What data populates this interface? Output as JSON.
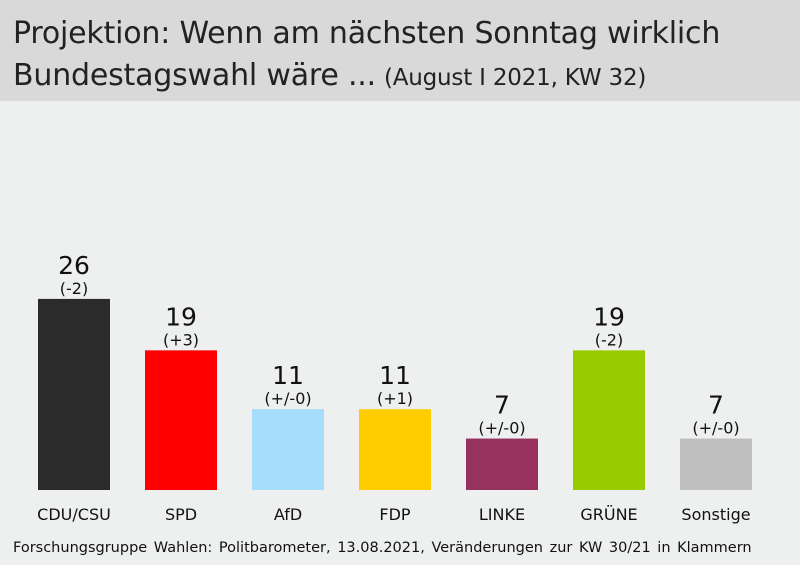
{
  "header": {
    "title_line1": "Projektion: Wenn am nächsten Sonntag wirklich",
    "title_line2": "Bundestagswahl wäre ...",
    "subtitle": "(August I 2021, KW 32)"
  },
  "chart_data": {
    "type": "bar",
    "categories": [
      "CDU/CSU",
      "SPD",
      "AfD",
      "FDP",
      "LINKE",
      "GRÜNE",
      "Sonstige"
    ],
    "values": [
      26,
      19,
      11,
      11,
      7,
      19,
      7
    ],
    "changes": [
      "(-2)",
      "(+3)",
      "(+/-0)",
      "(+1)",
      "(+/-0)",
      "(-2)",
      "(+/-0)"
    ],
    "colors": [
      "#2b2b2b",
      "#ff0000",
      "#a6dcfc",
      "#ffcc00",
      "#97325f",
      "#99cc00",
      "#bfbfbf"
    ],
    "grid": false,
    "legend": "none"
  },
  "footer": {
    "source": "Forschungsgruppe Wahlen: Politbarometer, 13.08.2021, Veränderungen zur KW 30/21 in Klammern"
  }
}
